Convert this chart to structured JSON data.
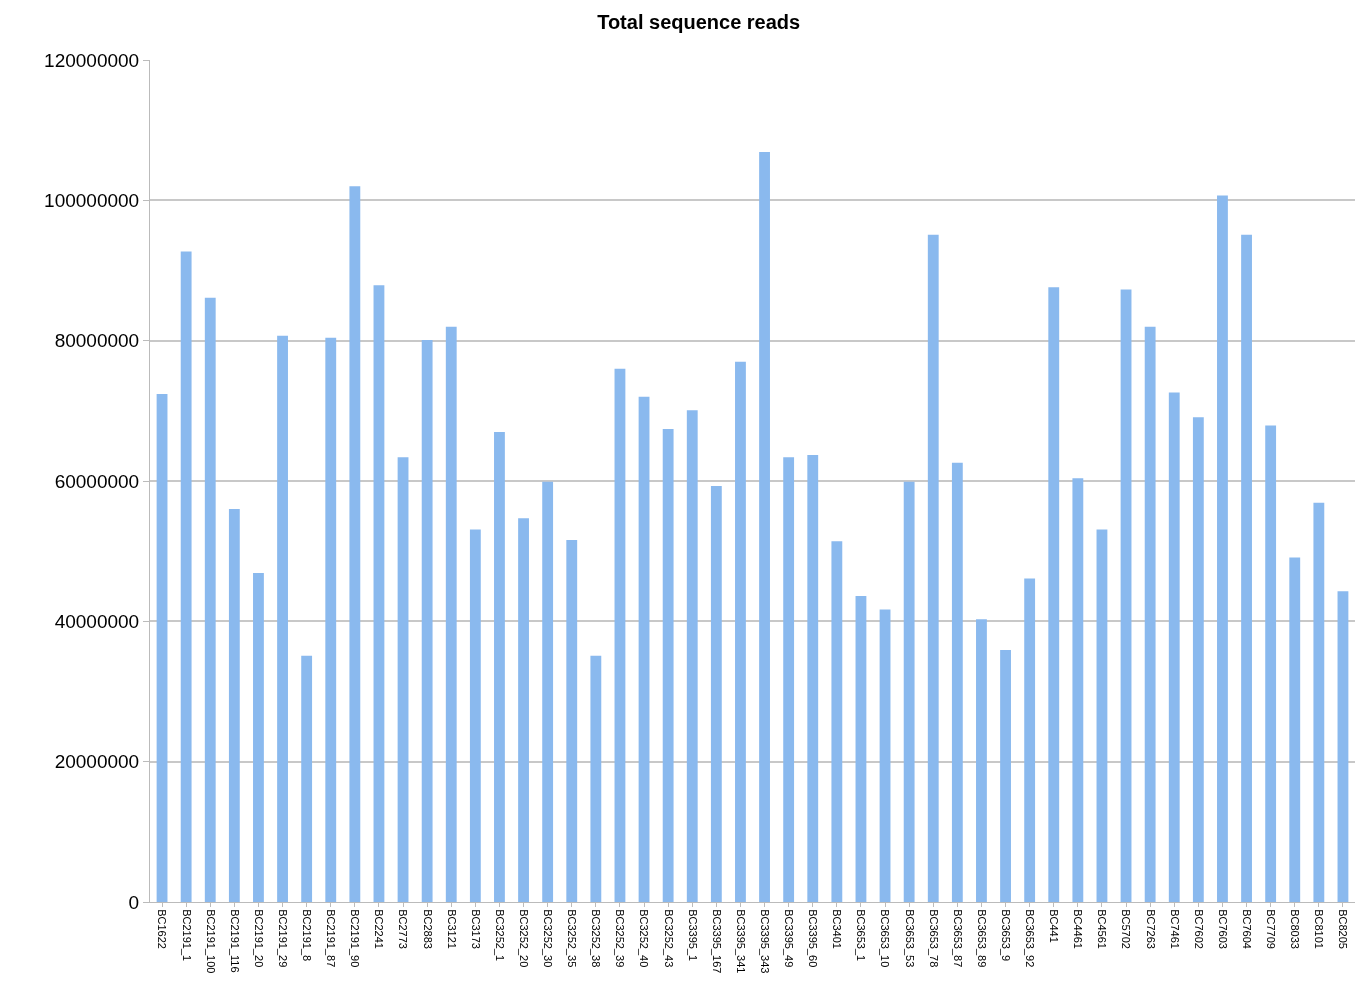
{
  "chart_data": {
    "type": "bar",
    "title": "Total sequence reads",
    "categories": [
      "BC1622",
      "BC2191_1",
      "BC2191_100",
      "BC2191_116",
      "BC2191_20",
      "BC2191_29",
      "BC2191_8",
      "BC2191_87",
      "BC2191_90",
      "BC2241",
      "BC2773",
      "BC2883",
      "BC3121",
      "BC3173",
      "BC3252_1",
      "BC3252_20",
      "BC3252_30",
      "BC3252_35",
      "BC3252_38",
      "BC3252_39",
      "BC3252_40",
      "BC3252_43",
      "BC3395_1",
      "BC3395_167",
      "BC3395_341",
      "BC3395_343",
      "BC3395_49",
      "BC3395_60",
      "BC3401",
      "BC3653_1",
      "BC3653_10",
      "BC3653_53",
      "BC3653_78",
      "BC3653_87",
      "BC3653_89",
      "BC3653_9",
      "BC3653_92",
      "BC441",
      "BC4461",
      "BC4561",
      "BC5702",
      "BC7263",
      "BC7461",
      "BC7602",
      "BC7603",
      "BC7604",
      "BC7709",
      "BC8033",
      "BC8101",
      "BC8205"
    ],
    "values": [
      72400000,
      92700000,
      86100000,
      56000000,
      46900000,
      80700000,
      35100000,
      80400000,
      102000000,
      87900000,
      63400000,
      80100000,
      82000000,
      53100000,
      67000000,
      54700000,
      59900000,
      51600000,
      35100000,
      76000000,
      72000000,
      67400000,
      70100000,
      59300000,
      77000000,
      106900000,
      63400000,
      63700000,
      51400000,
      43600000,
      41700000,
      59900000,
      95100000,
      62600000,
      40300000,
      35900000,
      46100000,
      87600000,
      60400000,
      53100000,
      87300000,
      82000000,
      72600000,
      69100000,
      100700000,
      95100000,
      67900000,
      49100000,
      56900000,
      44300000
    ],
    "color": "#8ab9ee",
    "ylim": [
      0,
      120000000
    ],
    "yticks": [
      0,
      20000000,
      40000000,
      60000000,
      80000000,
      100000000,
      120000000
    ],
    "grid": "y"
  }
}
